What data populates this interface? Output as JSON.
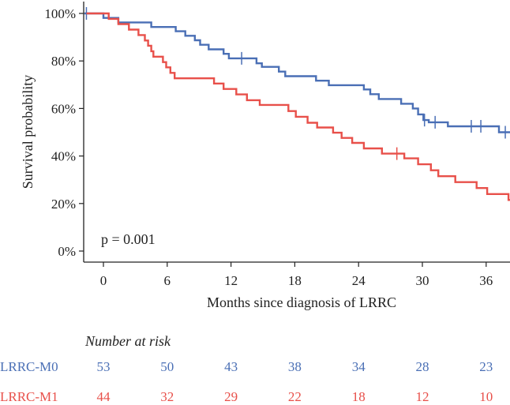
{
  "chart_data": {
    "type": "line",
    "subtype": "kaplan-meier",
    "title": "",
    "xlabel": "Months since diagnosis of LRRC",
    "ylabel": "Survival probability",
    "xlim": [
      -2.2,
      38.5
    ],
    "ylim": [
      -0.05,
      1.05
    ],
    "x_ticks": [
      0,
      6,
      12,
      18,
      24,
      30,
      36
    ],
    "x_tick_labels": [
      "0",
      "6",
      "12",
      "18",
      "24",
      "30",
      "36"
    ],
    "y_ticks": [
      0,
      0.2,
      0.4,
      0.6,
      0.8,
      1.0
    ],
    "y_tick_labels": [
      "0%",
      "20%",
      "40%",
      "60%",
      "80%",
      "100%"
    ],
    "annotation": "p = 0.001",
    "series": [
      {
        "name": "LRRC-M0",
        "color": "#4a6fb5",
        "steps": [
          [
            -1.8,
            1.0
          ],
          [
            0,
            0.981
          ],
          [
            1.4,
            0.962
          ],
          [
            4.5,
            0.943
          ],
          [
            6.8,
            0.925
          ],
          [
            7.7,
            0.906
          ],
          [
            8.6,
            0.887
          ],
          [
            9.1,
            0.868
          ],
          [
            9.9,
            0.849
          ],
          [
            11.3,
            0.83
          ],
          [
            11.8,
            0.811
          ],
          [
            14.4,
            0.79
          ],
          [
            14.9,
            0.775
          ],
          [
            16.5,
            0.755
          ],
          [
            17.1,
            0.736
          ],
          [
            20,
            0.717
          ],
          [
            21.2,
            0.698
          ],
          [
            24.5,
            0.68
          ],
          [
            25.1,
            0.66
          ],
          [
            25.9,
            0.64
          ],
          [
            28,
            0.62
          ],
          [
            29.1,
            0.6
          ],
          [
            29.6,
            0.575
          ],
          [
            30.1,
            0.551
          ],
          [
            30.6,
            0.542
          ],
          [
            32.4,
            0.525
          ],
          [
            37.2,
            0.5
          ],
          [
            38.3,
            0.5
          ]
        ],
        "censor_x": [
          -1.6,
          13,
          30.2,
          31.2,
          34.6,
          35.5,
          37.8
        ]
      },
      {
        "name": "LRRC-M1",
        "color": "#e8504a",
        "steps": [
          [
            -1.6,
            1.0
          ],
          [
            0.5,
            0.977
          ],
          [
            1.4,
            0.955
          ],
          [
            2.4,
            0.932
          ],
          [
            3.3,
            0.909
          ],
          [
            3.9,
            0.886
          ],
          [
            4.2,
            0.864
          ],
          [
            4.5,
            0.841
          ],
          [
            4.7,
            0.818
          ],
          [
            5.6,
            0.795
          ],
          [
            5.9,
            0.773
          ],
          [
            6.3,
            0.75
          ],
          [
            6.7,
            0.727
          ],
          [
            10.4,
            0.705
          ],
          [
            11.3,
            0.682
          ],
          [
            12.5,
            0.659
          ],
          [
            13.5,
            0.635
          ],
          [
            14.7,
            0.615
          ],
          [
            17.4,
            0.589
          ],
          [
            18.1,
            0.565
          ],
          [
            19.2,
            0.54
          ],
          [
            20.1,
            0.52
          ],
          [
            21.6,
            0.498
          ],
          [
            22.4,
            0.476
          ],
          [
            23.4,
            0.455
          ],
          [
            24.5,
            0.432
          ],
          [
            26.2,
            0.41
          ],
          [
            28.3,
            0.39
          ],
          [
            29.6,
            0.365
          ],
          [
            30.8,
            0.34
          ],
          [
            31.5,
            0.315
          ],
          [
            33.1,
            0.29
          ],
          [
            35.1,
            0.265
          ],
          [
            36.1,
            0.24
          ],
          [
            38.1,
            0.215
          ],
          [
            38.5,
            0.215
          ]
        ],
        "censor_x": [
          27.6
        ]
      }
    ],
    "risk_table": {
      "title": "Number at risk",
      "times": [
        0,
        6,
        12,
        18,
        24,
        30,
        36
      ],
      "rows": [
        {
          "name": "LRRC-M0",
          "color": "#4a6fb5",
          "counts": [
            53,
            50,
            43,
            38,
            34,
            28,
            23
          ]
        },
        {
          "name": "LRRC-M1",
          "color": "#e8504a",
          "counts": [
            44,
            32,
            29,
            22,
            18,
            12,
            10
          ]
        }
      ]
    }
  }
}
